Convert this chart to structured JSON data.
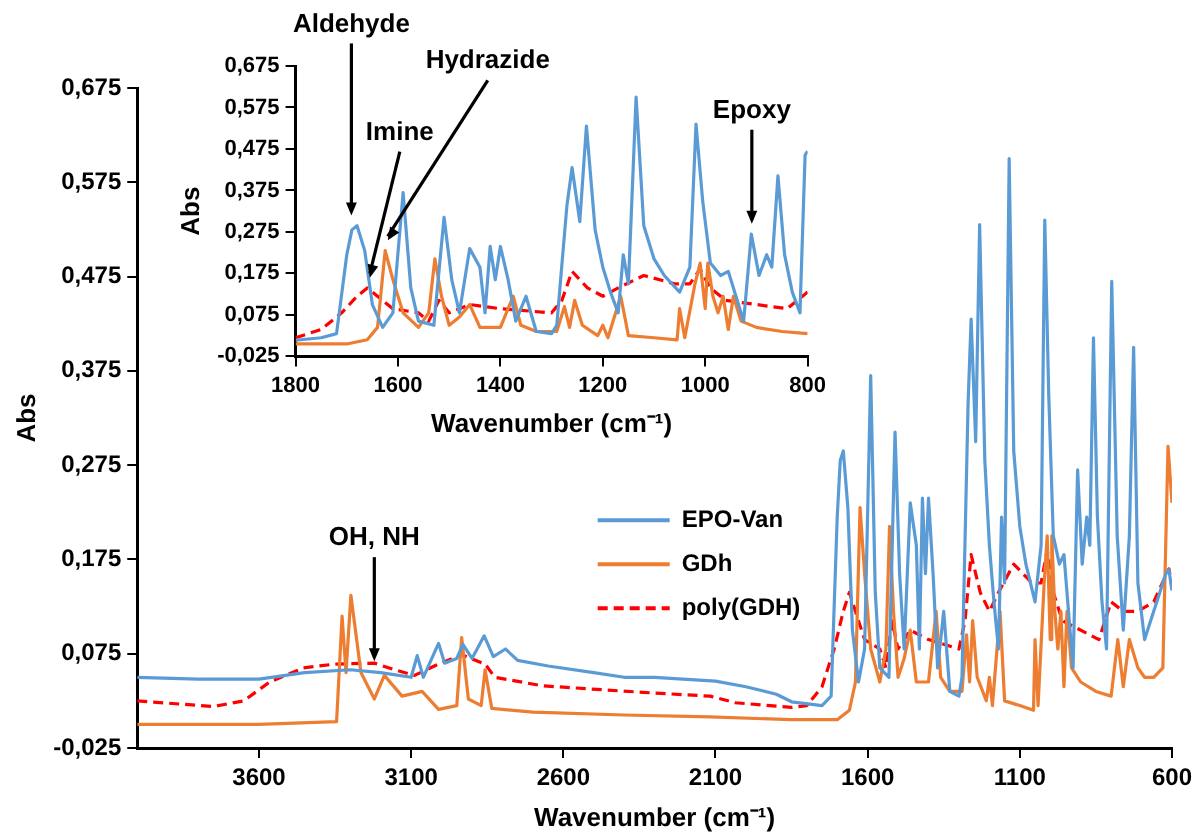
{
  "chart_data": [
    {
      "type": "line",
      "xlabel": "Wavenumber (cm⁻¹)",
      "ylabel": "Abs",
      "xlim": [
        4000,
        600
      ],
      "xticks": [
        3600,
        3100,
        2600,
        2100,
        1600,
        1100,
        600
      ],
      "ylim": [
        -0.025,
        0.675
      ],
      "yticks": [
        {
          "value": -0.025,
          "label": "-0,025"
        },
        {
          "value": 0.075,
          "label": "0,075"
        },
        {
          "value": 0.175,
          "label": "0,175"
        },
        {
          "value": 0.275,
          "label": "0,275"
        },
        {
          "value": 0.375,
          "label": "0,375"
        },
        {
          "value": 0.475,
          "label": "0,475"
        },
        {
          "value": 0.575,
          "label": "0,575"
        },
        {
          "value": 0.675,
          "label": "0,675"
        }
      ],
      "grid": false,
      "legend": "right",
      "marker": "none",
      "annotations": [
        {
          "text": "OH, NH",
          "x": 3221,
          "y": 0.065
        }
      ],
      "series": [
        {
          "name": "EPO-Van",
          "color": "#5b9bd5",
          "line_style": "solid",
          "x": [
            4000,
            3800,
            3600,
            3450,
            3300,
            3200,
            3100,
            3080,
            3060,
            3010,
            2990,
            2950,
            2930,
            2900,
            2860,
            2830,
            2790,
            2750,
            2650,
            2500,
            2400,
            2300,
            2100,
            2000,
            1900,
            1850,
            1750,
            1720,
            1700,
            1690,
            1680,
            1665,
            1650,
            1630,
            1610,
            1590,
            1575,
            1560,
            1530,
            1510,
            1495,
            1480,
            1460,
            1440,
            1430,
            1420,
            1410,
            1400,
            1385,
            1370,
            1350,
            1330,
            1300,
            1290,
            1270,
            1260,
            1245,
            1232,
            1215,
            1200,
            1185,
            1170,
            1160,
            1150,
            1135,
            1120,
            1100,
            1080,
            1050,
            1030,
            1018,
            1005,
            990,
            970,
            955,
            940,
            925,
            910,
            895,
            880,
            870,
            858,
            845,
            830,
            815,
            798,
            780,
            760,
            740,
            726,
            712,
            690,
            660,
            640,
            620,
            610,
            600
          ],
          "values": [
            0.05,
            0.048,
            0.048,
            0.055,
            0.058,
            0.055,
            0.05,
            0.073,
            0.05,
            0.086,
            0.065,
            0.07,
            0.085,
            0.07,
            0.094,
            0.072,
            0.08,
            0.068,
            0.062,
            0.055,
            0.05,
            0.05,
            0.046,
            0.04,
            0.032,
            0.024,
            0.02,
            0.03,
            0.22,
            0.28,
            0.29,
            0.23,
            0.1,
            0.045,
            0.08,
            0.37,
            0.14,
            0.06,
            0.05,
            0.31,
            0.16,
            0.08,
            0.235,
            0.19,
            0.08,
            0.24,
            0.16,
            0.24,
            0.16,
            0.06,
            0.12,
            0.035,
            0.03,
            0.05,
            0.34,
            0.43,
            0.3,
            0.53,
            0.28,
            0.19,
            0.13,
            0.08,
            0.22,
            0.15,
            0.6,
            0.29,
            0.21,
            0.17,
            0.13,
            0.19,
            0.535,
            0.35,
            0.2,
            0.17,
            0.18,
            0.12,
            0.06,
            0.27,
            0.17,
            0.22,
            0.19,
            0.41,
            0.22,
            0.13,
            0.08,
            0.47,
            0.2,
            0.1,
            0.2,
            0.4,
            0.15,
            0.09,
            0.12,
            0.14,
            0.16,
            0.164,
            0.142
          ]
        },
        {
          "name": "GDh",
          "color": "#ed7d31",
          "line_style": "solid",
          "x": [
            4000,
            3600,
            3345,
            3327,
            3314,
            3298,
            3265,
            3221,
            3188,
            3130,
            3064,
            3010,
            2950,
            2934,
            2912,
            2870,
            2857,
            2835,
            2700,
            2400,
            2118,
            1850,
            1700,
            1660,
            1640,
            1625,
            1610,
            1590,
            1560,
            1540,
            1528,
            1515,
            1500,
            1480,
            1460,
            1440,
            1400,
            1375,
            1360,
            1330,
            1290,
            1275,
            1265,
            1255,
            1240,
            1210,
            1200,
            1190,
            1165,
            1150,
            1100,
            1055,
            1050,
            1040,
            1020,
            1010,
            1000,
            995,
            985,
            975,
            965,
            955,
            945,
            930,
            900,
            850,
            800,
            778,
            760,
            740,
            712,
            690,
            660,
            630,
            613,
            600
          ],
          "values": [
            0.0,
            0.0,
            0.003,
            0.115,
            0.055,
            0.137,
            0.055,
            0.027,
            0.052,
            0.03,
            0.035,
            0.016,
            0.02,
            0.092,
            0.027,
            0.02,
            0.058,
            0.017,
            0.013,
            0.01,
            0.008,
            0.005,
            0.005,
            0.015,
            0.045,
            0.23,
            0.16,
            0.08,
            0.045,
            0.08,
            0.21,
            0.12,
            0.05,
            0.07,
            0.1,
            0.045,
            0.045,
            0.12,
            0.05,
            0.035,
            0.035,
            0.095,
            0.045,
            0.11,
            0.05,
            0.025,
            0.05,
            0.02,
            0.12,
            0.025,
            0.02,
            0.015,
            0.09,
            0.02,
            0.15,
            0.2,
            0.09,
            0.2,
            0.12,
            0.08,
            0.12,
            0.04,
            0.12,
            0.06,
            0.045,
            0.035,
            0.03,
            0.09,
            0.04,
            0.09,
            0.06,
            0.05,
            0.05,
            0.06,
            0.295,
            0.235
          ]
        },
        {
          "name": "poly(GDH)",
          "color": "#ff0000",
          "line_style": "dashed",
          "x": [
            4000,
            3750,
            3650,
            3565,
            3454,
            3350,
            3221,
            3155,
            3089,
            3010,
            2934,
            2857,
            2825,
            2670,
            2339,
            2118,
            2035,
            1850,
            1800,
            1750,
            1710,
            1680,
            1660,
            1640,
            1610,
            1560,
            1540,
            1520,
            1500,
            1460,
            1400,
            1300,
            1280,
            1260,
            1230,
            1200,
            1170,
            1120,
            1060,
            1030,
            1010,
            990,
            960,
            900,
            840,
            800,
            760,
            712,
            660,
            610,
            600
          ],
          "values": [
            0.025,
            0.019,
            0.025,
            0.045,
            0.06,
            0.064,
            0.065,
            0.058,
            0.052,
            0.064,
            0.074,
            0.064,
            0.05,
            0.041,
            0.034,
            0.03,
            0.023,
            0.018,
            0.02,
            0.04,
            0.08,
            0.12,
            0.14,
            0.12,
            0.09,
            0.08,
            0.06,
            0.11,
            0.08,
            0.1,
            0.09,
            0.08,
            0.11,
            0.18,
            0.14,
            0.12,
            0.14,
            0.17,
            0.15,
            0.15,
            0.185,
            0.14,
            0.11,
            0.1,
            0.09,
            0.13,
            0.12,
            0.12,
            0.13,
            0.165,
            0.147
          ]
        }
      ]
    },
    {
      "type": "line",
      "xlabel": "Wavenumber (cm⁻¹)",
      "ylabel": "Abs",
      "xlim": [
        1800,
        800
      ],
      "xticks": [
        1800,
        1600,
        1400,
        1200,
        1000,
        800
      ],
      "ylim": [
        -0.025,
        0.675
      ],
      "yticks": [
        {
          "value": -0.025,
          "label": "-0,025"
        },
        {
          "value": 0.075,
          "label": "0,075"
        },
        {
          "value": 0.175,
          "label": "0,175"
        },
        {
          "value": 0.275,
          "label": "0,275"
        },
        {
          "value": 0.375,
          "label": "0,375"
        },
        {
          "value": 0.475,
          "label": "0,475"
        },
        {
          "value": 0.575,
          "label": "0,575"
        },
        {
          "value": 0.675,
          "label": "0,675"
        }
      ],
      "grid": false,
      "marker": "none",
      "annotations": [
        {
          "text": "Aldehyde",
          "x": 1691,
          "y": 0.31
        },
        {
          "text": "Imine",
          "x": 1655,
          "y": 0.16
        },
        {
          "text": "Hydrazide",
          "x": 1620,
          "y": 0.25
        },
        {
          "text": "Epoxy",
          "x": 909,
          "y": 0.29
        }
      ],
      "series": [
        {
          "color": "#5b9bd5",
          "line_style": "solid",
          "x": [
            1800,
            1750,
            1720,
            1700,
            1690,
            1680,
            1665,
            1650,
            1630,
            1610,
            1590,
            1575,
            1560,
            1530,
            1510,
            1495,
            1480,
            1460,
            1440,
            1430,
            1420,
            1410,
            1400,
            1385,
            1370,
            1350,
            1330,
            1300,
            1290,
            1270,
            1260,
            1245,
            1232,
            1215,
            1200,
            1185,
            1170,
            1160,
            1150,
            1135,
            1120,
            1100,
            1080,
            1050,
            1030,
            1018,
            1005,
            990,
            970,
            955,
            940,
            925,
            910,
            895,
            880,
            870,
            858,
            845,
            830,
            815,
            805,
            800
          ],
          "values": [
            0.014,
            0.02,
            0.03,
            0.22,
            0.28,
            0.29,
            0.23,
            0.1,
            0.045,
            0.08,
            0.37,
            0.14,
            0.06,
            0.05,
            0.31,
            0.16,
            0.08,
            0.235,
            0.19,
            0.08,
            0.24,
            0.16,
            0.24,
            0.16,
            0.06,
            0.12,
            0.035,
            0.03,
            0.05,
            0.34,
            0.43,
            0.3,
            0.53,
            0.28,
            0.19,
            0.13,
            0.08,
            0.22,
            0.15,
            0.6,
            0.29,
            0.21,
            0.17,
            0.13,
            0.19,
            0.535,
            0.35,
            0.2,
            0.17,
            0.18,
            0.12,
            0.06,
            0.27,
            0.17,
            0.22,
            0.19,
            0.41,
            0.22,
            0.13,
            0.08,
            0.46,
            0.47
          ]
        },
        {
          "color": "#ed7d31",
          "line_style": "solid",
          "x": [
            1800,
            1700,
            1660,
            1640,
            1625,
            1610,
            1590,
            1560,
            1540,
            1528,
            1515,
            1500,
            1480,
            1460,
            1440,
            1400,
            1375,
            1360,
            1330,
            1290,
            1275,
            1265,
            1255,
            1240,
            1210,
            1200,
            1190,
            1165,
            1150,
            1100,
            1055,
            1050,
            1040,
            1020,
            1010,
            1000,
            995,
            985,
            975,
            965,
            955,
            945,
            930,
            900,
            850,
            800
          ],
          "values": [
            0.005,
            0.005,
            0.015,
            0.045,
            0.23,
            0.16,
            0.08,
            0.045,
            0.08,
            0.21,
            0.12,
            0.05,
            0.07,
            0.1,
            0.045,
            0.045,
            0.12,
            0.05,
            0.035,
            0.035,
            0.095,
            0.045,
            0.11,
            0.05,
            0.025,
            0.05,
            0.02,
            0.12,
            0.025,
            0.02,
            0.015,
            0.09,
            0.02,
            0.15,
            0.2,
            0.09,
            0.2,
            0.12,
            0.08,
            0.12,
            0.04,
            0.12,
            0.06,
            0.045,
            0.035,
            0.03
          ]
        },
        {
          "color": "#ff0000",
          "line_style": "dashed",
          "x": [
            1800,
            1750,
            1710,
            1680,
            1660,
            1640,
            1610,
            1560,
            1540,
            1520,
            1500,
            1460,
            1400,
            1300,
            1280,
            1260,
            1230,
            1200,
            1170,
            1120,
            1060,
            1030,
            1010,
            990,
            960,
            900,
            840,
            800
          ],
          "values": [
            0.02,
            0.04,
            0.08,
            0.12,
            0.14,
            0.12,
            0.09,
            0.08,
            0.06,
            0.11,
            0.08,
            0.1,
            0.09,
            0.08,
            0.11,
            0.18,
            0.14,
            0.12,
            0.14,
            0.17,
            0.15,
            0.15,
            0.185,
            0.14,
            0.11,
            0.1,
            0.09,
            0.13
          ]
        }
      ]
    }
  ]
}
